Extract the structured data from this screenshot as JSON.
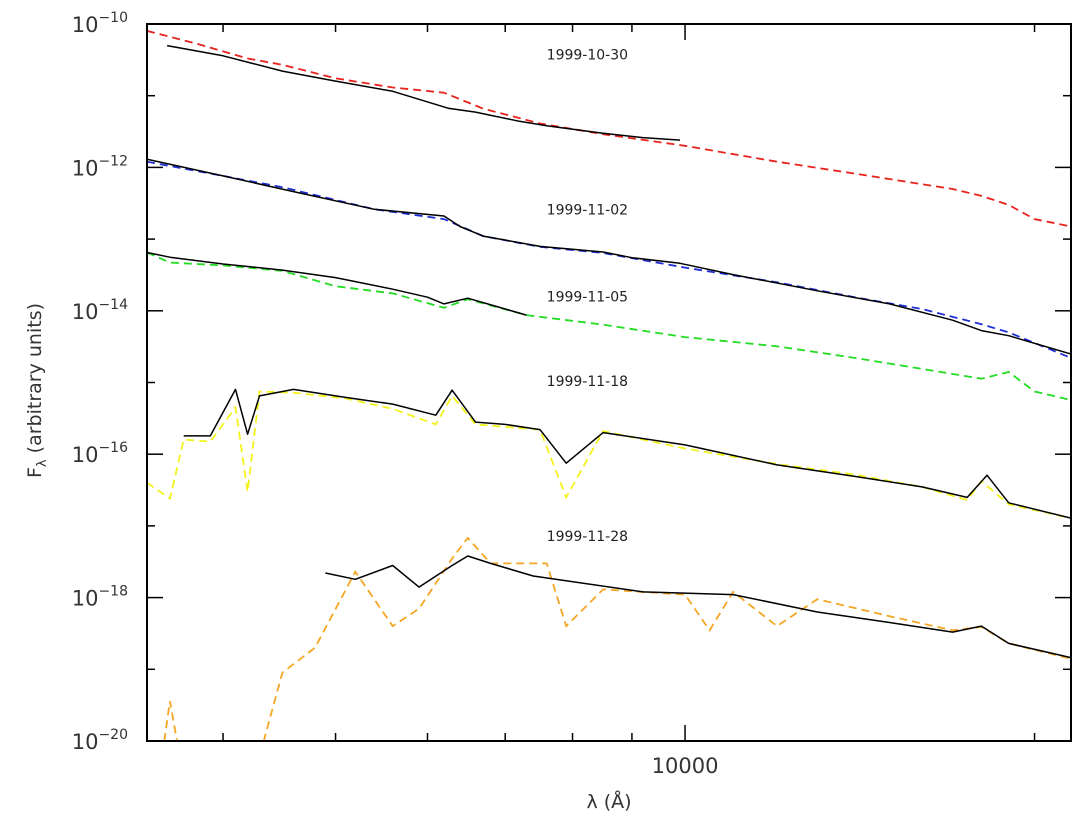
{
  "chart_data": {
    "type": "line",
    "xlabel": "λ (Å)",
    "ylabel_main": "F",
    "ylabel_sub": "λ",
    "ylabel_rest": " (arbitrary units)",
    "x_scale": "log",
    "y_scale": "log",
    "xlim": [
      3440,
      21500
    ],
    "ylim": [
      1e-20,
      1e-10
    ],
    "x_tick_labels": [
      {
        "value": 10000,
        "text": "10000"
      }
    ],
    "x_minor_ticks": [
      4000,
      5000,
      6000,
      7000,
      8000,
      9000,
      10000,
      20000
    ],
    "y_tick_labels": [
      {
        "value": 1e-10,
        "base": "10",
        "exp": "−10"
      },
      {
        "value": 1e-12,
        "base": "10",
        "exp": "−12"
      },
      {
        "value": 1e-14,
        "base": "10",
        "exp": "−14"
      },
      {
        "value": 1e-16,
        "base": "10",
        "exp": "−16"
      },
      {
        "value": 1e-18,
        "base": "10",
        "exp": "−18"
      },
      {
        "value": 1e-20,
        "base": "10",
        "exp": "−20"
      }
    ],
    "y_minor_ticks": [
      1e-11,
      1e-13,
      1e-15,
      1e-17,
      1e-19
    ],
    "series": [
      {
        "date": "1999-10-30",
        "color": "#e8231d",
        "label_at": [
          7600,
          3.2e-11
        ],
        "observed": [
          [
            3580,
            5e-11
          ],
          [
            4000,
            3.6e-11
          ],
          [
            4500,
            2.2e-11
          ],
          [
            5000,
            1.6e-11
          ],
          [
            5600,
            1.15e-11
          ],
          [
            6250,
            6.7e-12
          ],
          [
            6600,
            5.9e-12
          ],
          [
            7200,
            4.4e-12
          ],
          [
            7600,
            3.8e-12
          ],
          [
            8500,
            3e-12
          ],
          [
            9200,
            2.6e-12
          ],
          [
            9900,
            2.4e-12
          ]
        ],
        "model": [
          [
            3440,
            8e-11
          ],
          [
            3800,
            5.3e-11
          ],
          [
            4200,
            3.3e-11
          ],
          [
            4500,
            2.7e-11
          ],
          [
            5000,
            1.75e-11
          ],
          [
            5600,
            1.3e-11
          ],
          [
            6200,
            1.1e-11
          ],
          [
            6700,
            6.6e-12
          ],
          [
            7500,
            4.1e-12
          ],
          [
            8500,
            2.9e-12
          ],
          [
            10000,
            2e-12
          ],
          [
            12000,
            1.2e-12
          ],
          [
            14000,
            8.2e-13
          ],
          [
            17000,
            5e-13
          ],
          [
            18000,
            4e-13
          ],
          [
            19000,
            3e-13
          ],
          [
            20000,
            1.9e-13
          ],
          [
            21500,
            1.5e-13
          ]
        ]
      },
      {
        "date": "1999-11-02",
        "color": "#1f2fd6",
        "label_at": [
          7600,
          2.2e-13
        ],
        "observed": [
          [
            3440,
            1.3e-12
          ],
          [
            4000,
            7.6e-13
          ],
          [
            4600,
            4.6e-13
          ],
          [
            5400,
            2.6e-13
          ],
          [
            6200,
            2.1e-13
          ],
          [
            6400,
            1.5e-13
          ],
          [
            6700,
            1.1e-13
          ],
          [
            7500,
            7.9e-14
          ],
          [
            8500,
            6.6e-14
          ],
          [
            9000,
            5.5e-14
          ],
          [
            9900,
            4.6e-14
          ],
          [
            11000,
            3.2e-14
          ],
          [
            13000,
            1.9e-14
          ],
          [
            15000,
            1.25e-14
          ],
          [
            17000,
            7.4e-15
          ],
          [
            18000,
            5.3e-15
          ],
          [
            19000,
            4.5e-15
          ],
          [
            21500,
            2.5e-15
          ]
        ],
        "model": [
          [
            3440,
            1.2e-12
          ],
          [
            4000,
            7.6e-13
          ],
          [
            4500,
            5.3e-13
          ],
          [
            5400,
            2.6e-13
          ],
          [
            6200,
            1.9e-13
          ],
          [
            6700,
            1.1e-13
          ],
          [
            7500,
            7.8e-14
          ],
          [
            8500,
            6.4e-14
          ],
          [
            10000,
            4e-14
          ],
          [
            12000,
            2.5e-14
          ],
          [
            14000,
            1.55e-14
          ],
          [
            16000,
            1.06e-14
          ],
          [
            18000,
            6.5e-15
          ],
          [
            19000,
            5e-15
          ],
          [
            21500,
            2.2e-15
          ]
        ]
      },
      {
        "date": "1999-11-05",
        "color": "#22dd22",
        "label_at": [
          7600,
          1.35e-14
        ],
        "observed": [
          [
            3440,
            6.5e-14
          ],
          [
            3600,
            5.6e-14
          ],
          [
            4000,
            4.5e-14
          ],
          [
            4500,
            3.7e-14
          ],
          [
            5000,
            2.9e-14
          ],
          [
            5600,
            2e-14
          ],
          [
            6000,
            1.55e-14
          ],
          [
            6200,
            1.25e-14
          ],
          [
            6500,
            1.5e-14
          ],
          [
            7300,
            8.7e-15
          ]
        ],
        "model": [
          [
            3440,
            6.5e-14
          ],
          [
            3600,
            4.7e-14
          ],
          [
            4000,
            4.3e-14
          ],
          [
            4500,
            3.6e-14
          ],
          [
            5000,
            2.2e-14
          ],
          [
            5600,
            1.75e-14
          ],
          [
            6200,
            1.1e-14
          ],
          [
            6500,
            1.45e-14
          ],
          [
            7300,
            8.7e-15
          ],
          [
            8500,
            6.4e-15
          ],
          [
            10000,
            4.3e-15
          ],
          [
            12000,
            3.2e-15
          ],
          [
            14000,
            2.2e-15
          ],
          [
            16000,
            1.55e-15
          ],
          [
            18000,
            1.13e-15
          ],
          [
            19000,
            1.4e-15
          ],
          [
            20000,
            7.5e-16
          ],
          [
            21500,
            5.7e-16
          ]
        ]
      },
      {
        "date": "1999-11-18",
        "color": "#f3f31b",
        "label_at": [
          7600,
          9e-16
        ],
        "observed": [
          [
            3700,
            1.8e-16
          ],
          [
            3900,
            1.8e-16
          ],
          [
            4100,
            8e-16
          ],
          [
            4200,
            1.9e-16
          ],
          [
            4300,
            6.5e-16
          ],
          [
            4600,
            8e-16
          ],
          [
            5100,
            6.2e-16
          ],
          [
            5600,
            5e-16
          ],
          [
            6100,
            3.5e-16
          ],
          [
            6300,
            7.8e-16
          ],
          [
            6600,
            2.8e-16
          ],
          [
            7000,
            2.6e-16
          ],
          [
            7500,
            2.2e-16
          ],
          [
            7900,
            7.5e-17
          ],
          [
            8500,
            2e-16
          ],
          [
            10000,
            1.35e-16
          ],
          [
            12000,
            7.1e-17
          ],
          [
            14000,
            4.9e-17
          ],
          [
            16000,
            3.5e-17
          ],
          [
            17500,
            2.5e-17
          ],
          [
            18200,
            5.1e-17
          ],
          [
            19000,
            2.1e-17
          ],
          [
            21500,
            1.28e-17
          ]
        ],
        "model": [
          [
            3440,
            4e-17
          ],
          [
            3600,
            2.4e-17
          ],
          [
            3700,
            1.6e-16
          ],
          [
            3900,
            1.5e-16
          ],
          [
            4100,
            4.5e-16
          ],
          [
            4200,
            3e-17
          ],
          [
            4300,
            7.5e-16
          ],
          [
            4600,
            7.2e-16
          ],
          [
            5100,
            6e-16
          ],
          [
            5600,
            4.3e-16
          ],
          [
            6100,
            2.6e-16
          ],
          [
            6300,
            6.5e-16
          ],
          [
            6600,
            2.6e-16
          ],
          [
            7000,
            2.4e-16
          ],
          [
            7500,
            2.2e-16
          ],
          [
            7900,
            2.5e-17
          ],
          [
            8500,
            2.1e-16
          ],
          [
            10000,
            1.2e-16
          ],
          [
            12000,
            7.3e-17
          ],
          [
            14000,
            5.2e-17
          ],
          [
            16000,
            3.5e-17
          ],
          [
            17500,
            2.3e-17
          ],
          [
            18000,
            4.2e-17
          ],
          [
            19000,
            2e-17
          ],
          [
            21500,
            1.28e-17
          ]
        ]
      },
      {
        "date": "1999-11-28",
        "color": "#f5a623",
        "label_at": [
          7600,
          6.2e-18
        ],
        "observed": [
          [
            4900,
            2.2e-18
          ],
          [
            5200,
            1.8e-18
          ],
          [
            5600,
            2.8e-18
          ],
          [
            5900,
            1.4e-18
          ],
          [
            6300,
            2.8e-18
          ],
          [
            6500,
            3.8e-18
          ],
          [
            6800,
            3e-18
          ],
          [
            7400,
            2e-18
          ],
          [
            9200,
            1.2e-18
          ],
          [
            11000,
            1.1e-18
          ],
          [
            13000,
            6.3e-19
          ],
          [
            15000,
            4.5e-19
          ],
          [
            17000,
            3.3e-19
          ],
          [
            18000,
            4e-19
          ],
          [
            19000,
            2.3e-19
          ],
          [
            21500,
            1.45e-19
          ]
        ],
        "model": [
          [
            3560,
            1e-20
          ],
          [
            3600,
            3.6e-20
          ],
          [
            3700,
            3e-21
          ],
          [
            4200,
            1.5e-21
          ],
          [
            4500,
            9e-20
          ],
          [
            4800,
            2e-19
          ],
          [
            5200,
            2.3e-18
          ],
          [
            5600,
            4e-19
          ],
          [
            5900,
            7e-19
          ],
          [
            6300,
            3.5e-18
          ],
          [
            6500,
            6.8e-18
          ],
          [
            6800,
            3e-18
          ],
          [
            7200,
            3e-18
          ],
          [
            7600,
            3e-18
          ],
          [
            7900,
            4e-19
          ],
          [
            8500,
            1.3e-18
          ],
          [
            10000,
            1.1e-18
          ],
          [
            10500,
            3.5e-19
          ],
          [
            11000,
            1.2e-18
          ],
          [
            12000,
            4e-19
          ],
          [
            13000,
            9.5e-19
          ],
          [
            15000,
            5.5e-19
          ],
          [
            17000,
            3.5e-19
          ],
          [
            18000,
            3.9e-19
          ],
          [
            19000,
            2.3e-19
          ],
          [
            21500,
            1.4e-19
          ]
        ]
      }
    ]
  }
}
